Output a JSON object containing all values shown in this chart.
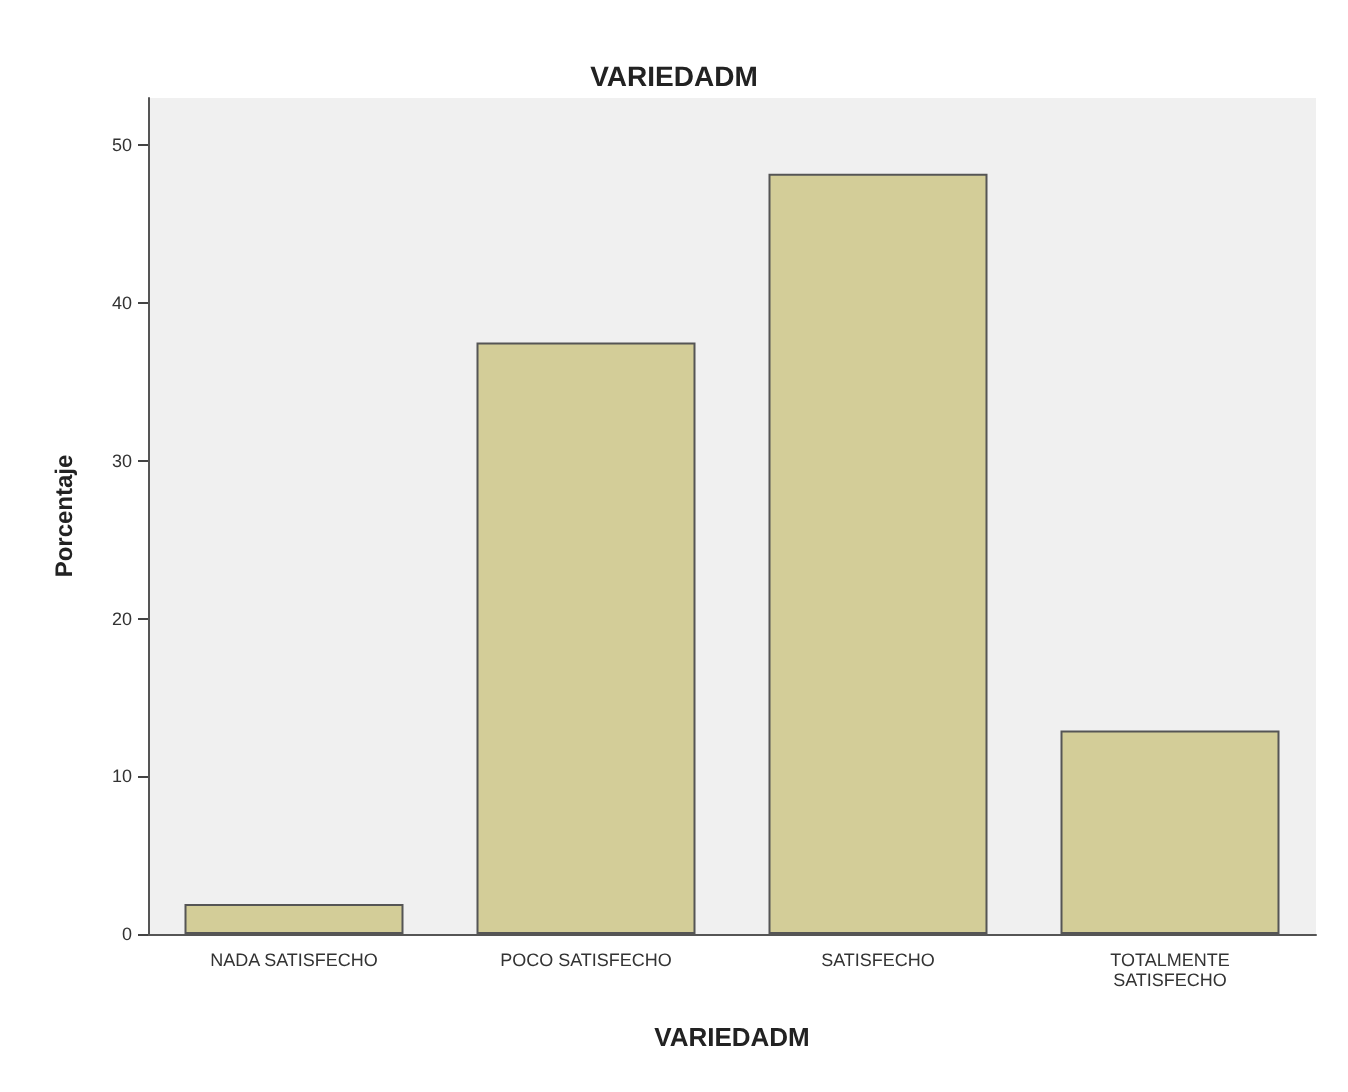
{
  "chart_data": {
    "type": "bar",
    "title": "VARIEDADM",
    "xlabel": "VARIEDADM",
    "ylabel": "Porcentaje",
    "categories": [
      "NADA SATISFECHO",
      "POCO SATISFECHO",
      "SATISFECHO",
      "TOTALMENTE\nSATISFECHO"
    ],
    "values": [
      1.9,
      37.5,
      48.2,
      12.9
    ],
    "color": "#d3cd98",
    "ylim": [
      0,
      53
    ],
    "yticks": [
      0,
      10,
      20,
      30,
      40,
      50
    ],
    "grid": false
  }
}
